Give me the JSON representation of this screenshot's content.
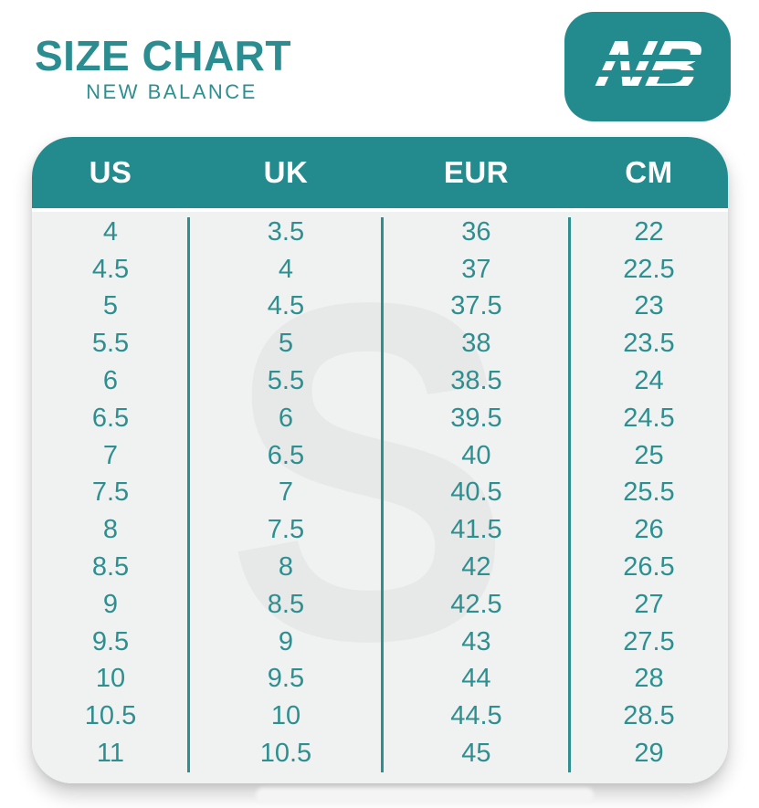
{
  "header": {
    "title": "SIZE CHART",
    "subtitle": "NEW BALANCE"
  },
  "logo": {
    "icon": "new-balance-nb-icon",
    "letters": "NB"
  },
  "watermark": {
    "letter": "S"
  },
  "colors": {
    "teal_accent": "#238b8e",
    "text_teal": "#2e8f90",
    "header_text": "#ffffff",
    "table_background": "#f0f1f1",
    "watermark_gray": "#e7e8e8",
    "page_background": "#ffffff"
  },
  "table": {
    "columns": [
      "US",
      "UK",
      "EUR",
      "CM"
    ],
    "rows": [
      [
        "4",
        "3.5",
        "36",
        "22"
      ],
      [
        "4.5",
        "4",
        "37",
        "22.5"
      ],
      [
        "5",
        "4.5",
        "37.5",
        "23"
      ],
      [
        "5.5",
        "5",
        "38",
        "23.5"
      ],
      [
        "6",
        "5.5",
        "38.5",
        "24"
      ],
      [
        "6.5",
        "6",
        "39.5",
        "24.5"
      ],
      [
        "7",
        "6.5",
        "40",
        "25"
      ],
      [
        "7.5",
        "7",
        "40.5",
        "25.5"
      ],
      [
        "8",
        "7.5",
        "41.5",
        "26"
      ],
      [
        "8.5",
        "8",
        "42",
        "26.5"
      ],
      [
        "9",
        "8.5",
        "42.5",
        "27"
      ],
      [
        "9.5",
        "9",
        "43",
        "27.5"
      ],
      [
        "10",
        "9.5",
        "44",
        "28"
      ],
      [
        "10.5",
        "10",
        "44.5",
        "28.5"
      ],
      [
        "11",
        "10.5",
        "45",
        "29"
      ]
    ]
  },
  "chart_data": {
    "type": "table",
    "title": "SIZE CHART - NEW BALANCE",
    "columns": [
      "US",
      "UK",
      "EUR",
      "CM"
    ],
    "rows": [
      [
        4,
        3.5,
        36,
        22
      ],
      [
        4.5,
        4,
        37,
        22.5
      ],
      [
        5,
        4.5,
        37.5,
        23
      ],
      [
        5.5,
        5,
        38,
        23.5
      ],
      [
        6,
        5.5,
        38.5,
        24
      ],
      [
        6.5,
        6,
        39.5,
        24.5
      ],
      [
        7,
        6.5,
        40,
        25
      ],
      [
        7.5,
        7,
        40.5,
        25.5
      ],
      [
        8,
        7.5,
        41.5,
        26
      ],
      [
        8.5,
        8,
        42,
        26.5
      ],
      [
        9,
        8.5,
        42.5,
        27
      ],
      [
        9.5,
        9,
        43,
        27.5
      ],
      [
        10,
        9.5,
        44,
        28
      ],
      [
        10.5,
        10,
        44.5,
        28.5
      ],
      [
        11,
        10.5,
        45,
        29
      ]
    ]
  }
}
